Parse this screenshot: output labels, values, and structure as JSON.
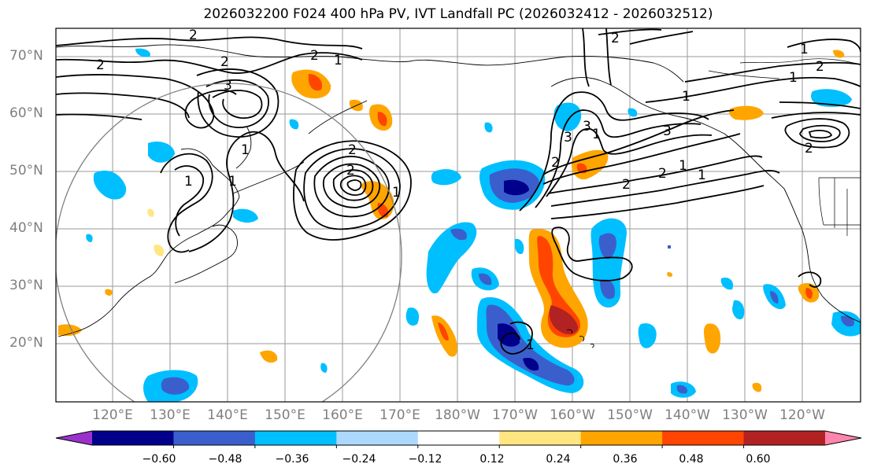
{
  "title": "2026032200 F024 400 hPa PV, IVT Landfall PC (2026032412 - 2026032512)",
  "latitude_labels": [
    "70°N",
    "60°N",
    "50°N",
    "40°N",
    "30°N",
    "20°N"
  ],
  "longitude_labels": [
    "120°E",
    "130°E",
    "140°E",
    "150°E",
    "160°E",
    "170°E",
    "180°W",
    "170°W",
    "160°W",
    "150°W",
    "140°W",
    "130°W",
    "120°W"
  ],
  "contour_labels": [
    "2",
    "2",
    "2",
    "1",
    "2",
    "3",
    "1",
    "1",
    "1",
    "2",
    "2",
    "1",
    "2",
    "1",
    "3",
    "2",
    "3",
    "1",
    "3",
    "2",
    "2",
    "1",
    "1",
    "1",
    "2",
    "2",
    "1",
    "1"
  ],
  "colorbar": {
    "tick_labels": [
      "−0.60",
      "−0.48",
      "−0.36",
      "−0.24",
      "−0.12",
      "0.12",
      "0.24",
      "0.36",
      "0.48",
      "0.60"
    ],
    "colors": [
      "#9932cc",
      "#00008b",
      "#3a5fcd",
      "#00bfff",
      "#add8fe",
      "#ffffff",
      "#ffe680",
      "#ffa500",
      "#ff4500",
      "#b22222",
      "#ff85ad"
    ]
  }
}
